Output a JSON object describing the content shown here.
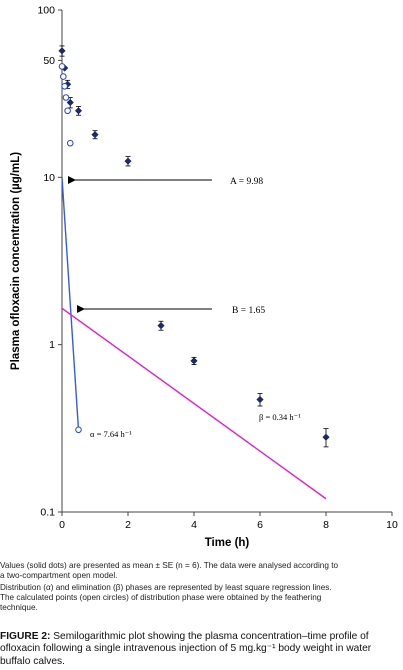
{
  "chart_data": {
    "type": "scatter",
    "yscale": "log",
    "xlabel": "Time (h)",
    "ylabel": "Plasma ofloxacin concentration (µg/mL)",
    "xlim": [
      0,
      10
    ],
    "ylim": [
      0.1,
      100
    ],
    "xticks": [
      "0",
      "2",
      "4",
      "6",
      "8",
      "10"
    ],
    "yticks": [
      "0.1",
      "1",
      "10",
      "50",
      "100"
    ],
    "grid": false,
    "series": [
      {
        "style": "filled-diamond-with-error-bars",
        "x": [
          0,
          0.08,
          0.17,
          0.25,
          0.5,
          1,
          2,
          3,
          4,
          6,
          8
        ],
        "y": [
          57,
          45,
          36,
          28,
          25,
          18,
          12.5,
          1.3,
          0.8,
          0.47,
          0.28
        ],
        "se": [
          4,
          0,
          2,
          2,
          1.5,
          1,
          0.8,
          0.08,
          0.04,
          0.04,
          0.035
        ]
      },
      {
        "style": "open-circle",
        "x": [
          0,
          0.04,
          0.08,
          0.12,
          0.17,
          0.25,
          0.5
        ],
        "y": [
          46,
          40,
          35,
          30,
          25,
          16,
          0.31
        ]
      }
    ],
    "lines": [
      {
        "name": "distribution",
        "color": "#3a5bd6",
        "x": [
          0,
          0.5
        ],
        "y": [
          9.98,
          0.31
        ]
      },
      {
        "name": "elimination",
        "color": "#e020c8",
        "x": [
          0,
          8
        ],
        "y": [
          1.65,
          0.12
        ]
      }
    ],
    "arrows": [
      {
        "label": "A = 9.98",
        "y": 9.98
      },
      {
        "label": "B = 1.65",
        "y": 1.65
      }
    ],
    "annotations": [
      {
        "text": "α = 7.64 h⁻¹"
      },
      {
        "text": "β = 0.34 h⁻¹"
      }
    ]
  },
  "note": {
    "line1": "Values (solid dots) are presented as mean ± SE (n = 6). The data were analysed according to",
    "line2": "a two-compartment open model.",
    "line3": "Distribution (α) and elimination (β) phases are represented by least square regression lines.",
    "line4": "The calculated points (open circles) of distribution phase were obtained by the feathering",
    "line5": "technique."
  },
  "caption": {
    "label": "FIGURE 2:",
    "text": "Semilogarithmic plot showing the plasma concentration–time profile of ofloxacin following a single intravenous injection of 5 mg.kg⁻¹ body weight in water buffalo calves."
  }
}
